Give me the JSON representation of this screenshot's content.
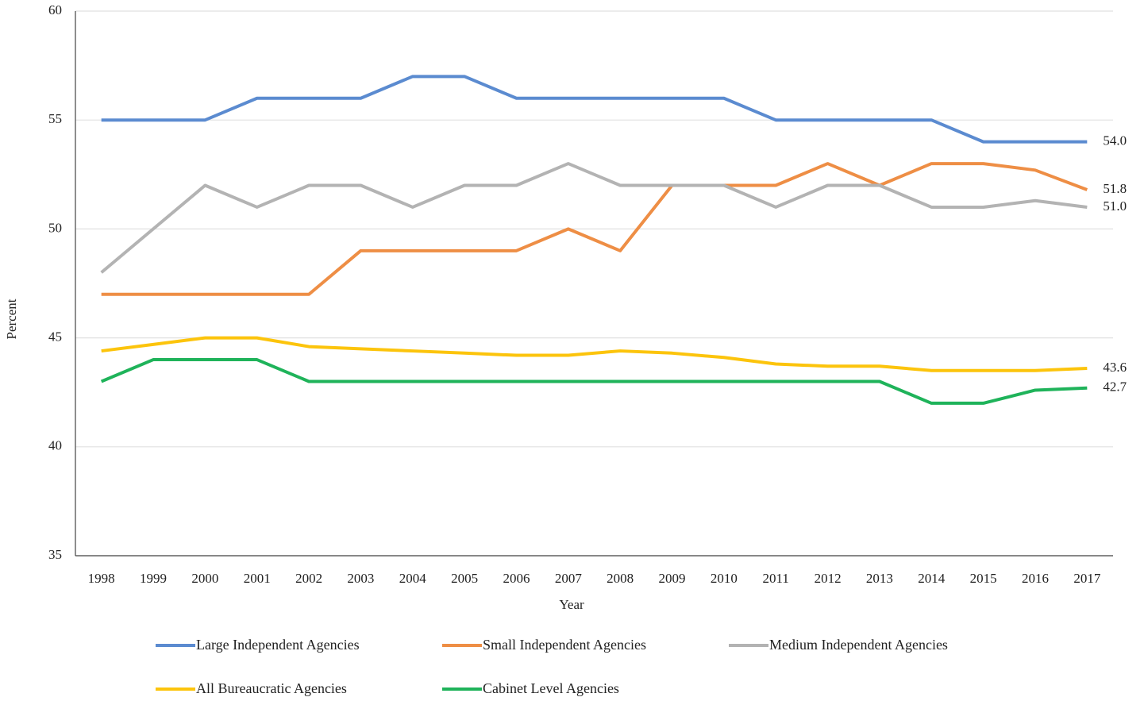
{
  "chart_data": {
    "type": "line",
    "x_label": "Year",
    "y_label": "Percent",
    "x": [
      1998,
      1999,
      2000,
      2001,
      2002,
      2003,
      2004,
      2005,
      2006,
      2007,
      2008,
      2009,
      2010,
      2011,
      2012,
      2013,
      2014,
      2015,
      2016,
      2017
    ],
    "xlim": [
      1997.5,
      2017.5
    ],
    "xticks": [
      1998,
      1999,
      2000,
      2001,
      2002,
      2003,
      2004,
      2005,
      2006,
      2007,
      2008,
      2009,
      2010,
      2011,
      2012,
      2013,
      2014,
      2015,
      2016,
      2017
    ],
    "ylim": [
      35,
      60
    ],
    "yticks": [
      35,
      40,
      45,
      50,
      55,
      60
    ],
    "grid": true,
    "series": [
      {
        "name": "Large Independent Agencies",
        "color": "#5b8bd0",
        "values": [
          55,
          55,
          55,
          56,
          56,
          56,
          57,
          57,
          56,
          56,
          56,
          56,
          56,
          55,
          55,
          55,
          55,
          54,
          54,
          54
        ],
        "value_labels": [
          null,
          null,
          null,
          null,
          null,
          null,
          null,
          null,
          null,
          null,
          null,
          null,
          null,
          null,
          null,
          null,
          null,
          null,
          null,
          "54.0"
        ]
      },
      {
        "name": "Small Independent Agencies",
        "color": "#ee8e45",
        "values": [
          47,
          47,
          47,
          47,
          47,
          49,
          49,
          49,
          49,
          50,
          49,
          52,
          52,
          52,
          53,
          52,
          53,
          53,
          52.7,
          51.8
        ],
        "value_labels": [
          null,
          null,
          null,
          null,
          null,
          null,
          null,
          null,
          null,
          null,
          null,
          null,
          null,
          null,
          null,
          null,
          null,
          null,
          null,
          "51.8"
        ]
      },
      {
        "name": "Medium Independent Agencies",
        "color": "#b3b3b3",
        "values": [
          48,
          50,
          52,
          51,
          52,
          52,
          51,
          52,
          52,
          53,
          52,
          52,
          52,
          51,
          52,
          52,
          51,
          51,
          51.3,
          51.0
        ],
        "value_labels": [
          null,
          null,
          null,
          null,
          null,
          null,
          null,
          null,
          null,
          null,
          null,
          null,
          null,
          null,
          null,
          null,
          null,
          null,
          null,
          "51.0"
        ]
      },
      {
        "name": "All Bureaucratic Agencies",
        "color": "#fcc40c",
        "values": [
          44.4,
          44.7,
          45,
          45,
          44.6,
          44.5,
          44.4,
          44.3,
          44.2,
          44.2,
          44.4,
          44.3,
          44.1,
          43.8,
          43.7,
          43.7,
          43.5,
          43.5,
          43.5,
          43.6
        ],
        "value_labels": [
          null,
          null,
          null,
          null,
          null,
          null,
          null,
          null,
          null,
          null,
          null,
          null,
          null,
          null,
          null,
          null,
          null,
          null,
          null,
          "43.6"
        ]
      },
      {
        "name": "Cabinet Level Agencies",
        "color": "#1fb35a",
        "values": [
          43,
          44,
          44,
          44,
          43,
          43,
          43,
          43,
          43,
          43,
          43,
          43,
          43,
          43,
          43,
          43,
          42,
          42,
          42.6,
          42.7
        ],
        "value_labels": [
          null,
          null,
          null,
          null,
          null,
          null,
          null,
          null,
          null,
          null,
          null,
          null,
          null,
          null,
          null,
          null,
          null,
          null,
          null,
          "42.7"
        ]
      }
    ]
  }
}
